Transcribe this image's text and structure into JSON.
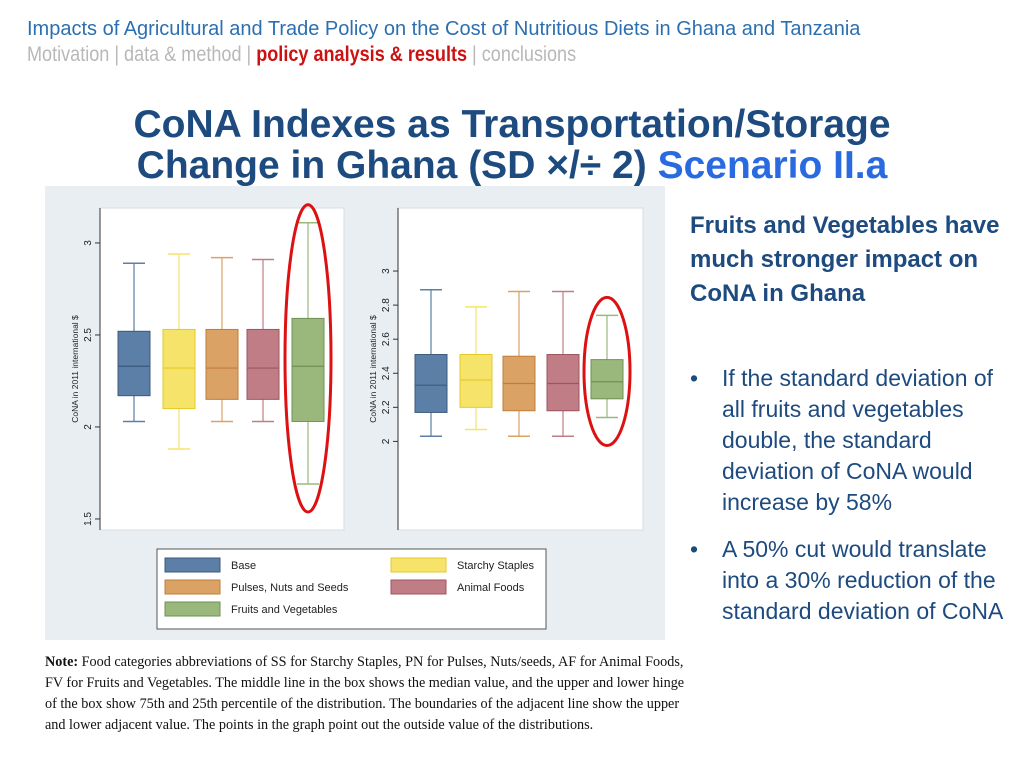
{
  "header": {
    "title": "Impacts of Agricultural and Trade Policy on the Cost of Nutritious Diets in Ghana and Tanzania",
    "nav_before": "Motivation | data & method | ",
    "nav_active": "policy analysis & results",
    "nav_after": " | conclusions"
  },
  "slide": {
    "title_line1": "CoNA Indexes as Transportation/Storage",
    "title_line2_main": "Change in Ghana (SD ×/÷ 2) ",
    "title_line2_scenario": "Scenario II.a"
  },
  "side": {
    "heading": "Fruits and Vegetables have much stronger impact on CoNA in Ghana",
    "bullets": [
      "If the standard deviation of all fruits and vegetables double, the standard deviation of CoNA would increase by 58%",
      "A 50% cut would translate into a 30% reduction of the standard deviation of CoNA"
    ]
  },
  "note": {
    "label": "Note:",
    "text": " Food categories abbreviations of SS for Starchy Staples, PN for Pulses, Nuts/seeds, AF for Animal Foods, FV for Fruits and Vegetables. The middle line in the box shows the median value, and the upper and lower hinge of the box show 75th and 25th percentile of the distribution. The boundaries of the adjacent line show the upper and lower adjacent value. The points in the graph point out the outside value of the distributions."
  },
  "chart_data": {
    "type": "box",
    "ylabel": "CoNA in 2011 international $",
    "legend": [
      "Base",
      "Starchy Staples",
      "Pulses, Nuts and Seeds",
      "Animal Foods",
      "Fruits and Vegetables"
    ],
    "colors": {
      "Base": {
        "fill": "#5b7fa6",
        "stroke": "#3d5a7d"
      },
      "Starchy Staples": {
        "fill": "#f6e36a",
        "stroke": "#e5c928"
      },
      "Pulses, Nuts and Seeds": {
        "fill": "#dba266",
        "stroke": "#bf7d3c"
      },
      "Animal Foods": {
        "fill": "#c07d86",
        "stroke": "#9c5560"
      },
      "Fruits and Vegetables": {
        "fill": "#9bb87c",
        "stroke": "#6f8f53"
      },
      "highlight": "#dd1111"
    },
    "panels": [
      {
        "yticks": [
          "1.5",
          "2",
          "2.5",
          "3"
        ],
        "ylim": [
          1.44,
          3.19
        ],
        "boxes": [
          {
            "name": "Base",
            "low": 2.03,
            "q1": 2.17,
            "median": 2.33,
            "q3": 2.52,
            "high": 2.89
          },
          {
            "name": "Starchy Staples",
            "low": 1.88,
            "q1": 2.1,
            "median": 2.32,
            "q3": 2.53,
            "high": 2.94
          },
          {
            "name": "Pulses, Nuts and Seeds",
            "low": 2.03,
            "q1": 2.15,
            "median": 2.32,
            "q3": 2.53,
            "high": 2.92
          },
          {
            "name": "Animal Foods",
            "low": 2.03,
            "q1": 2.15,
            "median": 2.32,
            "q3": 2.53,
            "high": 2.91
          },
          {
            "name": "Fruits and Vegetables",
            "low": 1.69,
            "q1": 2.03,
            "median": 2.33,
            "q3": 2.59,
            "high": 3.11
          }
        ]
      },
      {
        "yticks": [
          "2",
          "2.2",
          "2.4",
          "2.6",
          "2.8",
          "3"
        ],
        "ylim": [
          1.48,
          3.37
        ],
        "boxes": [
          {
            "name": "Base",
            "low": 2.03,
            "q1": 2.17,
            "median": 2.33,
            "q3": 2.51,
            "high": 2.89
          },
          {
            "name": "Starchy Staples",
            "low": 2.07,
            "q1": 2.2,
            "median": 2.36,
            "q3": 2.51,
            "high": 2.79
          },
          {
            "name": "Pulses, Nuts and Seeds",
            "low": 2.03,
            "q1": 2.18,
            "median": 2.34,
            "q3": 2.5,
            "high": 2.88
          },
          {
            "name": "Animal Foods",
            "low": 2.03,
            "q1": 2.18,
            "median": 2.34,
            "q3": 2.51,
            "high": 2.88
          },
          {
            "name": "Fruits and Vegetables",
            "low": 2.14,
            "q1": 2.25,
            "median": 2.35,
            "q3": 2.48,
            "high": 2.74
          }
        ]
      }
    ]
  }
}
